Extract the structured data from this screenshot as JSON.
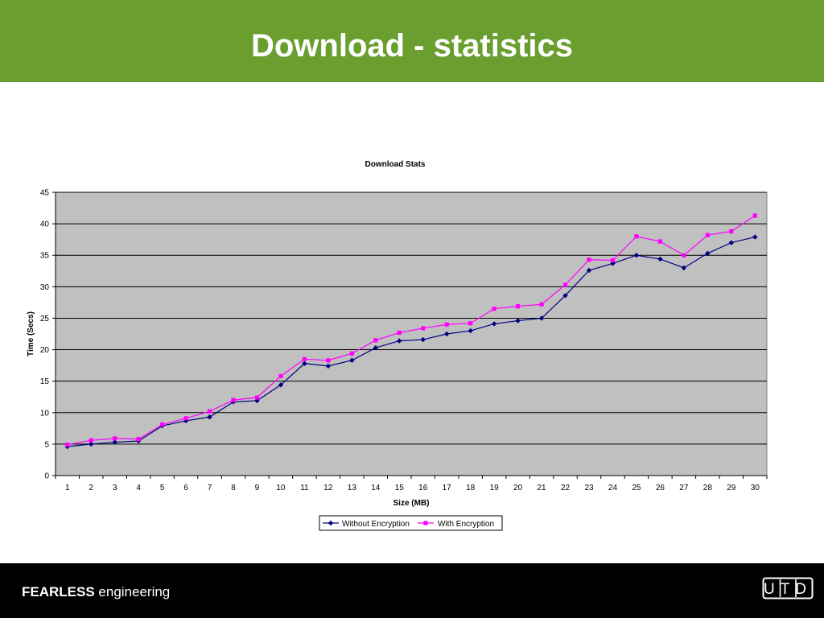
{
  "slide": {
    "title": "Download - statistics",
    "tagline_strong": "FEARLESS",
    "tagline_rest": " engineering",
    "logo_text": "UTD"
  },
  "colors": {
    "header_bg": "#6a9e2f",
    "footer_bg": "#000000",
    "plot_bg": "#c0c0c0",
    "series_without": "#000080",
    "series_with": "#ff00ff"
  },
  "chart_data": {
    "type": "line",
    "title": "Download Stats",
    "xlabel": "Size (MB)",
    "ylabel": "Time (Secs)",
    "ylim": [
      0,
      45
    ],
    "yticks": [
      0,
      5,
      10,
      15,
      20,
      25,
      30,
      35,
      40,
      45
    ],
    "grid": true,
    "legend": "bottom",
    "categories": [
      "1",
      "2",
      "3",
      "4",
      "5",
      "6",
      "7",
      "8",
      "9",
      "10",
      "11",
      "12",
      "13",
      "14",
      "15",
      "16",
      "17",
      "18",
      "19",
      "20",
      "21",
      "22",
      "23",
      "24",
      "25",
      "26",
      "27",
      "28",
      "29",
      "30"
    ],
    "series": [
      {
        "name": "Without Encryption",
        "color": "#000080",
        "marker": "diamond",
        "values": [
          4.6,
          5.0,
          5.3,
          5.5,
          7.9,
          8.7,
          9.3,
          11.7,
          11.9,
          14.4,
          17.8,
          17.4,
          18.3,
          20.3,
          21.4,
          21.6,
          22.5,
          23.0,
          24.1,
          24.6,
          25.0,
          28.6,
          32.6,
          33.7,
          35.0,
          34.4,
          33.0,
          35.3,
          37.0,
          37.9
        ]
      },
      {
        "name": "With Encryption",
        "color": "#ff00ff",
        "marker": "square",
        "values": [
          4.9,
          5.6,
          5.9,
          5.8,
          8.1,
          9.1,
          10.2,
          12.0,
          12.4,
          15.8,
          18.5,
          18.3,
          19.4,
          21.5,
          22.7,
          23.4,
          24.0,
          24.2,
          26.5,
          26.9,
          27.2,
          30.3,
          34.3,
          34.2,
          38.0,
          37.2,
          35.0,
          38.2,
          38.8,
          41.3
        ]
      }
    ]
  }
}
